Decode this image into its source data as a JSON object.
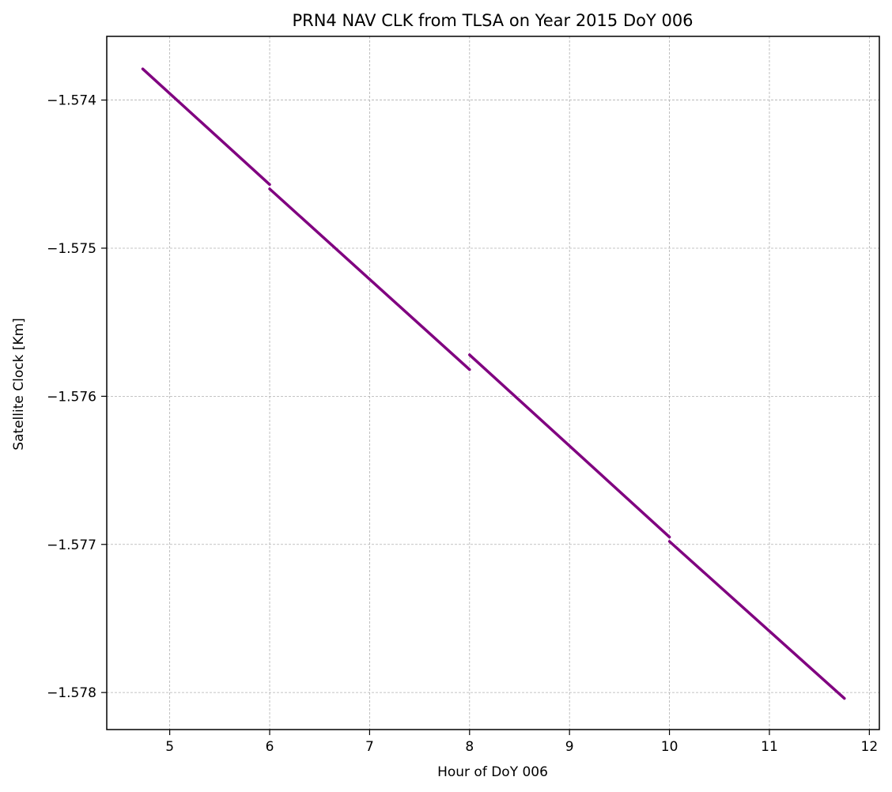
{
  "chart_data": {
    "type": "line",
    "title": "PRN4 NAV CLK from TLSA on Year 2015 DoY 006",
    "xlabel": "Hour of DoY 006",
    "ylabel": "Satellite Clock [Km]",
    "xlim": [
      4.37,
      12.1
    ],
    "ylim": [
      -1.57825,
      -1.57357
    ],
    "xticks": [
      {
        "value": 5,
        "label": "5"
      },
      {
        "value": 6,
        "label": "6"
      },
      {
        "value": 7,
        "label": "7"
      },
      {
        "value": 8,
        "label": "8"
      },
      {
        "value": 9,
        "label": "9"
      },
      {
        "value": 10,
        "label": "10"
      },
      {
        "value": 11,
        "label": "11"
      },
      {
        "value": 12,
        "label": "12"
      }
    ],
    "yticks": [
      {
        "value": -1.574,
        "label": "−1.574"
      },
      {
        "value": -1.575,
        "label": "−1.575"
      },
      {
        "value": -1.576,
        "label": "−1.576"
      },
      {
        "value": -1.577,
        "label": "−1.577"
      },
      {
        "value": -1.578,
        "label": "−1.578"
      }
    ],
    "grid": true,
    "line_color": "#800080",
    "series": [
      {
        "x": [
          4.73,
          6.0
        ],
        "y": [
          -1.57379,
          -1.57457
        ]
      },
      {
        "x": [
          6.0,
          8.0
        ],
        "y": [
          -1.5746,
          -1.57582
        ]
      },
      {
        "x": [
          8.0,
          10.0
        ],
        "y": [
          -1.57572,
          -1.57695
        ]
      },
      {
        "x": [
          10.0,
          11.75
        ],
        "y": [
          -1.57698,
          -1.57804
        ]
      }
    ]
  }
}
